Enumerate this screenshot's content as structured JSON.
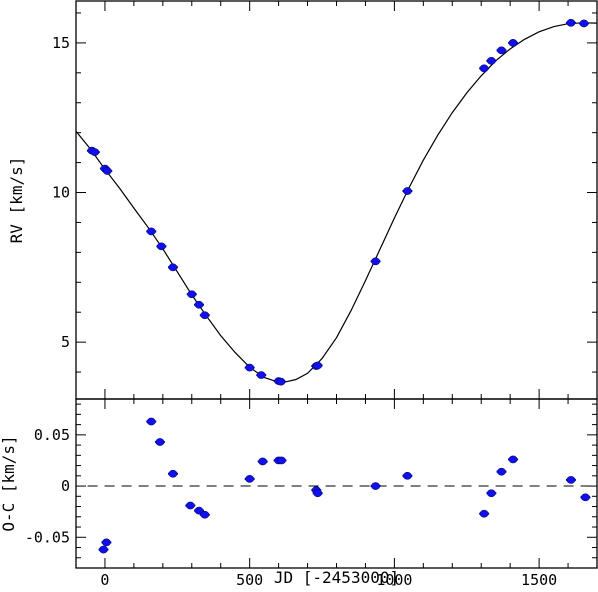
{
  "chart_data": [
    {
      "type": "scatter",
      "panel": "top",
      "xlim": [
        -100,
        1700
      ],
      "ylim": [
        3.1,
        16.4
      ],
      "ylabel": "RV [km/s]",
      "yticks": [
        5,
        10,
        15
      ],
      "ytick_labels": [
        "5",
        "10",
        "15"
      ],
      "xticks": [
        0,
        500,
        1000,
        1500
      ],
      "marker_color": "#1010ee",
      "series": [
        {
          "points": [
            {
              "x": -45,
              "y": 11.4
            },
            {
              "x": -35,
              "y": 11.35
            },
            {
              "x": 0,
              "y": 10.8
            },
            {
              "x": 8,
              "y": 10.72
            },
            {
              "x": 160,
              "y": 8.7
            },
            {
              "x": 195,
              "y": 8.2
            },
            {
              "x": 235,
              "y": 7.5
            },
            {
              "x": 300,
              "y": 6.6
            },
            {
              "x": 325,
              "y": 6.25
            },
            {
              "x": 345,
              "y": 5.9
            },
            {
              "x": 500,
              "y": 4.15
            },
            {
              "x": 540,
              "y": 3.9
            },
            {
              "x": 600,
              "y": 3.7
            },
            {
              "x": 608,
              "y": 3.68
            },
            {
              "x": 730,
              "y": 4.2
            },
            {
              "x": 735,
              "y": 4.22
            },
            {
              "x": 935,
              "y": 7.7
            },
            {
              "x": 1045,
              "y": 10.05
            },
            {
              "x": 1310,
              "y": 14.15
            },
            {
              "x": 1335,
              "y": 14.4
            },
            {
              "x": 1370,
              "y": 14.75
            },
            {
              "x": 1410,
              "y": 15.0
            },
            {
              "x": 1610,
              "y": 15.67
            },
            {
              "x": 1655,
              "y": 15.65
            }
          ]
        },
        {
          "kind": "model-curve",
          "points": [
            {
              "x": -100,
              "y": 12.05
            },
            {
              "x": -50,
              "y": 11.45
            },
            {
              "x": 0,
              "y": 10.78
            },
            {
              "x": 50,
              "y": 10.15
            },
            {
              "x": 100,
              "y": 9.48
            },
            {
              "x": 150,
              "y": 8.82
            },
            {
              "x": 200,
              "y": 8.12
            },
            {
              "x": 250,
              "y": 7.35
            },
            {
              "x": 300,
              "y": 6.58
            },
            {
              "x": 350,
              "y": 5.88
            },
            {
              "x": 400,
              "y": 5.22
            },
            {
              "x": 450,
              "y": 4.65
            },
            {
              "x": 500,
              "y": 4.16
            },
            {
              "x": 550,
              "y": 3.82
            },
            {
              "x": 590,
              "y": 3.69
            },
            {
              "x": 620,
              "y": 3.66
            },
            {
              "x": 660,
              "y": 3.75
            },
            {
              "x": 700,
              "y": 3.96
            },
            {
              "x": 750,
              "y": 4.45
            },
            {
              "x": 800,
              "y": 5.15
            },
            {
              "x": 850,
              "y": 6.05
            },
            {
              "x": 900,
              "y": 7.05
            },
            {
              "x": 950,
              "y": 8.1
            },
            {
              "x": 1000,
              "y": 9.15
            },
            {
              "x": 1050,
              "y": 10.15
            },
            {
              "x": 1100,
              "y": 11.08
            },
            {
              "x": 1150,
              "y": 11.92
            },
            {
              "x": 1200,
              "y": 12.67
            },
            {
              "x": 1250,
              "y": 13.33
            },
            {
              "x": 1300,
              "y": 13.9
            },
            {
              "x": 1350,
              "y": 14.4
            },
            {
              "x": 1400,
              "y": 14.8
            },
            {
              "x": 1450,
              "y": 15.12
            },
            {
              "x": 1500,
              "y": 15.37
            },
            {
              "x": 1550,
              "y": 15.54
            },
            {
              "x": 1600,
              "y": 15.64
            },
            {
              "x": 1650,
              "y": 15.67
            },
            {
              "x": 1700,
              "y": 15.66
            }
          ]
        }
      ]
    },
    {
      "type": "scatter",
      "panel": "bottom",
      "xlim": [
        -100,
        1700
      ],
      "ylim": [
        -0.08,
        0.085
      ],
      "xlabel": "JD [-2453000]",
      "ylabel": "O-C [km/s]",
      "xticks": [
        0,
        500,
        1000,
        1500
      ],
      "xtick_labels": [
        "0",
        "500",
        "1000",
        "1500"
      ],
      "yticks": [
        -0.05,
        0,
        0.05
      ],
      "ytick_labels": [
        "-0.05",
        "0",
        "0.05"
      ],
      "reference_line": 0,
      "marker_color": "#1010ee",
      "series": [
        {
          "points": [
            {
              "x": -5,
              "y": -0.062
            },
            {
              "x": 5,
              "y": -0.055
            },
            {
              "x": 160,
              "y": 0.063
            },
            {
              "x": 190,
              "y": 0.043
            },
            {
              "x": 235,
              "y": 0.012
            },
            {
              "x": 295,
              "y": -0.019
            },
            {
              "x": 325,
              "y": -0.024
            },
            {
              "x": 345,
              "y": -0.028
            },
            {
              "x": 500,
              "y": 0.007
            },
            {
              "x": 545,
              "y": 0.024
            },
            {
              "x": 600,
              "y": 0.025
            },
            {
              "x": 610,
              "y": 0.025
            },
            {
              "x": 730,
              "y": -0.004
            },
            {
              "x": 735,
              "y": -0.007
            },
            {
              "x": 935,
              "y": 0.0
            },
            {
              "x": 1045,
              "y": 0.01
            },
            {
              "x": 1310,
              "y": -0.027
            },
            {
              "x": 1335,
              "y": -0.007
            },
            {
              "x": 1370,
              "y": 0.014
            },
            {
              "x": 1410,
              "y": 0.026
            },
            {
              "x": 1610,
              "y": 0.006
            },
            {
              "x": 1660,
              "y": -0.011
            }
          ]
        }
      ]
    }
  ]
}
